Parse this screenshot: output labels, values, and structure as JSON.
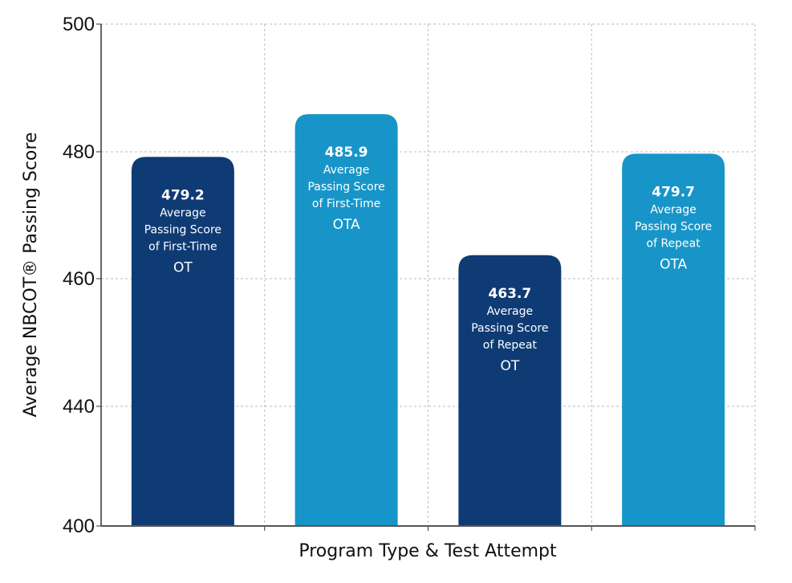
{
  "chart_data": {
    "type": "bar",
    "title": "",
    "xlabel": "Program Type & Test Attempt",
    "ylabel": "Average NBCOT® Passing Score",
    "ylim": [
      400,
      500
    ],
    "yticks": [
      400,
      440,
      460,
      480,
      500
    ],
    "grid": true,
    "categories": [
      "First-Time OT",
      "First-Time OTA",
      "Repeat OT",
      "Repeat OTA"
    ],
    "values": [
      479.2,
      485.9,
      463.7,
      479.7
    ],
    "bar_labels": [
      {
        "value": "479.2",
        "lines": [
          "Average",
          "Passing Score",
          "of First-Time"
        ],
        "program": "OT"
      },
      {
        "value": "485.9",
        "lines": [
          "Average",
          "Passing Score",
          "of First-Time"
        ],
        "program": "OTA"
      },
      {
        "value": "463.7",
        "lines": [
          "Average",
          "Passing Score",
          "of Repeat"
        ],
        "program": "OT"
      },
      {
        "value": "479.7",
        "lines": [
          "Average",
          "Passing Score",
          "of Repeat"
        ],
        "program": "OTA"
      }
    ],
    "colors": [
      "#0f3b75",
      "#1895c8",
      "#0f3b75",
      "#1895c8"
    ]
  }
}
